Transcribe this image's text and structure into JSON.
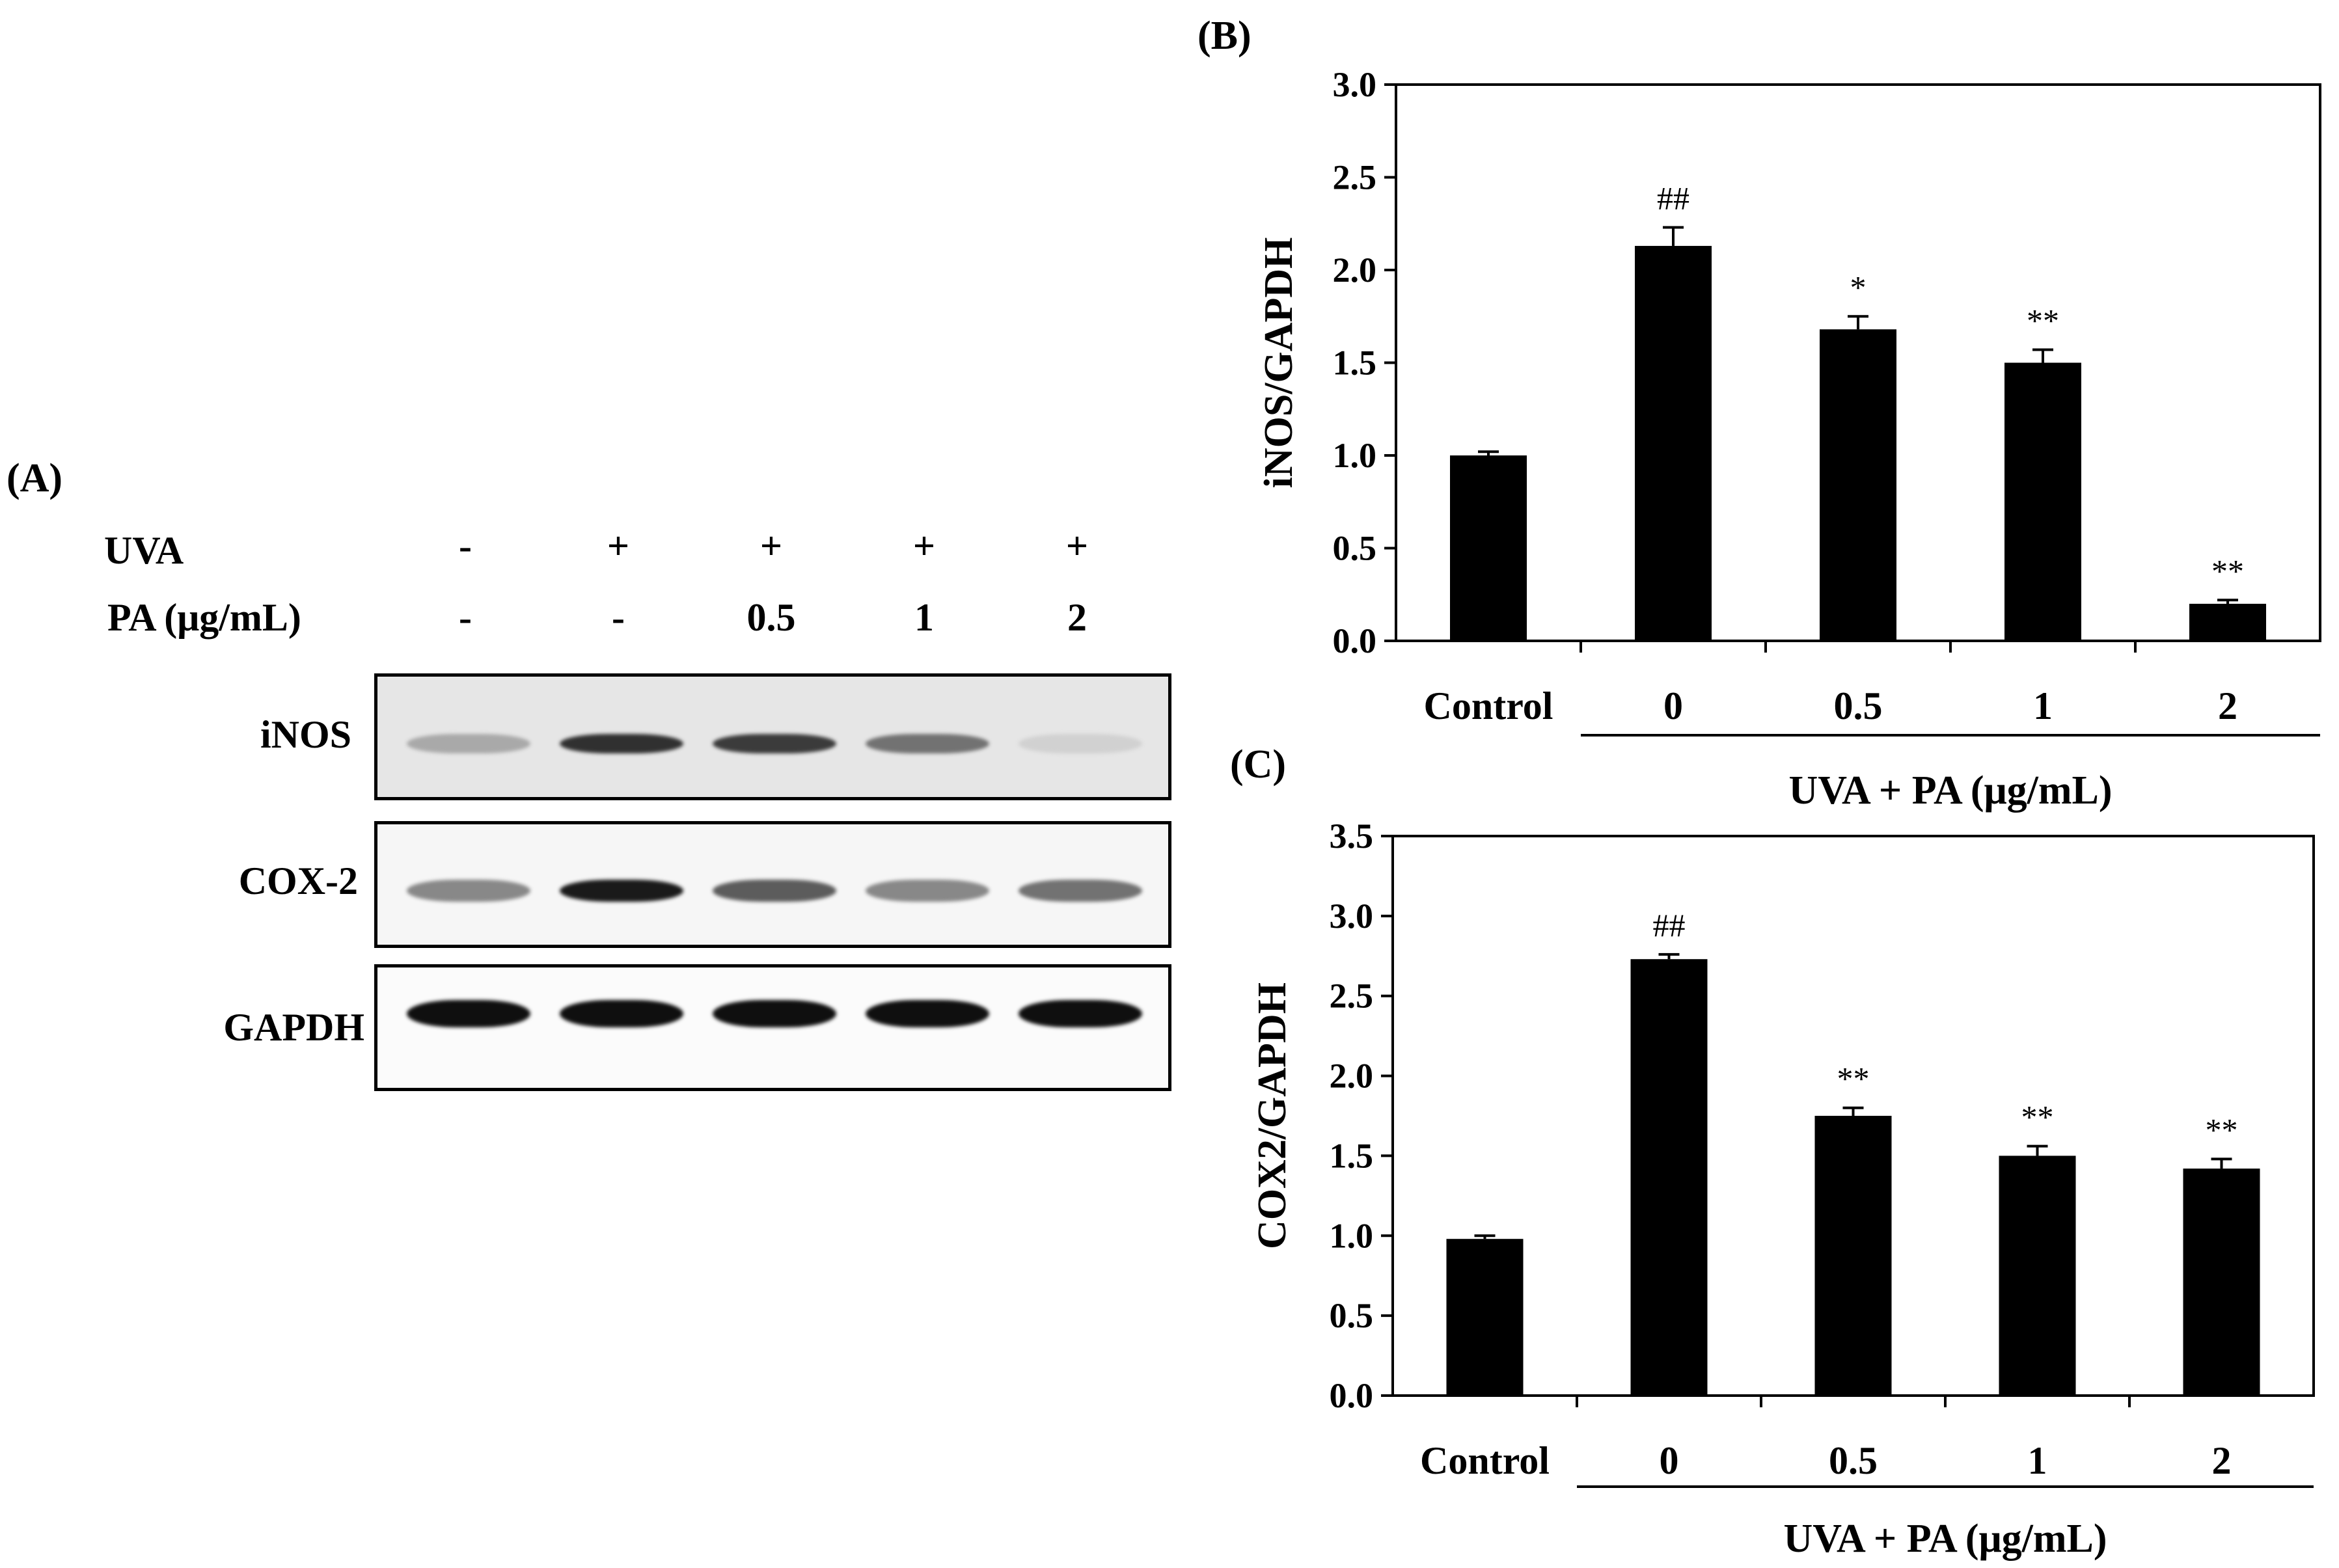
{
  "panel_a": {
    "label": "(A)",
    "row_uva": {
      "label": "UVA",
      "values": [
        "-",
        "+",
        "+",
        "+",
        "+"
      ]
    },
    "row_pa": {
      "label": "PA (μg/mL)",
      "values": [
        "-",
        "-",
        "0.5",
        "1",
        "2"
      ]
    },
    "blots": [
      {
        "label": "iNOS",
        "intensities": [
          0.3,
          0.85,
          0.8,
          0.55,
          0.12
        ]
      },
      {
        "label": "COX-2",
        "intensities": [
          0.45,
          0.95,
          0.65,
          0.45,
          0.55
        ]
      },
      {
        "label": "GAPDH",
        "intensities": [
          1.0,
          1.0,
          1.0,
          1.0,
          1.0
        ]
      }
    ]
  },
  "chart_data": [
    {
      "panel": "(B)",
      "type": "bar",
      "categories": [
        "Control",
        "0",
        "0.5",
        "1",
        "2"
      ],
      "values": [
        1.0,
        2.13,
        1.68,
        1.5,
        0.2
      ],
      "errors": [
        0.02,
        0.1,
        0.07,
        0.07,
        0.02
      ],
      "annotations": [
        "",
        "##",
        "*",
        "**",
        "**"
      ],
      "ylabel": "iNOS/GAPDH",
      "xlabel": "UVA + PA (μg/mL)",
      "ylim": [
        0,
        3.0
      ],
      "yticks": [
        "0.0",
        "0.5",
        "1.0",
        "1.5",
        "2.0",
        "2.5",
        "3.0"
      ],
      "bar_color": "#000000"
    },
    {
      "panel": "(C)",
      "type": "bar",
      "categories": [
        "Control",
        "0",
        "0.5",
        "1",
        "2"
      ],
      "values": [
        0.98,
        2.73,
        1.75,
        1.5,
        1.42
      ],
      "errors": [
        0.02,
        0.03,
        0.05,
        0.06,
        0.06
      ],
      "annotations": [
        "",
        "##",
        "**",
        "**",
        "**"
      ],
      "ylabel": "COX2/GAPDH",
      "xlabel": "UVA + PA (μg/mL)",
      "ylim": [
        0,
        3.5
      ],
      "yticks": [
        "0.0",
        "0.5",
        "1.0",
        "1.5",
        "2.0",
        "2.5",
        "3.0",
        "3.5"
      ],
      "bar_color": "#000000"
    }
  ]
}
